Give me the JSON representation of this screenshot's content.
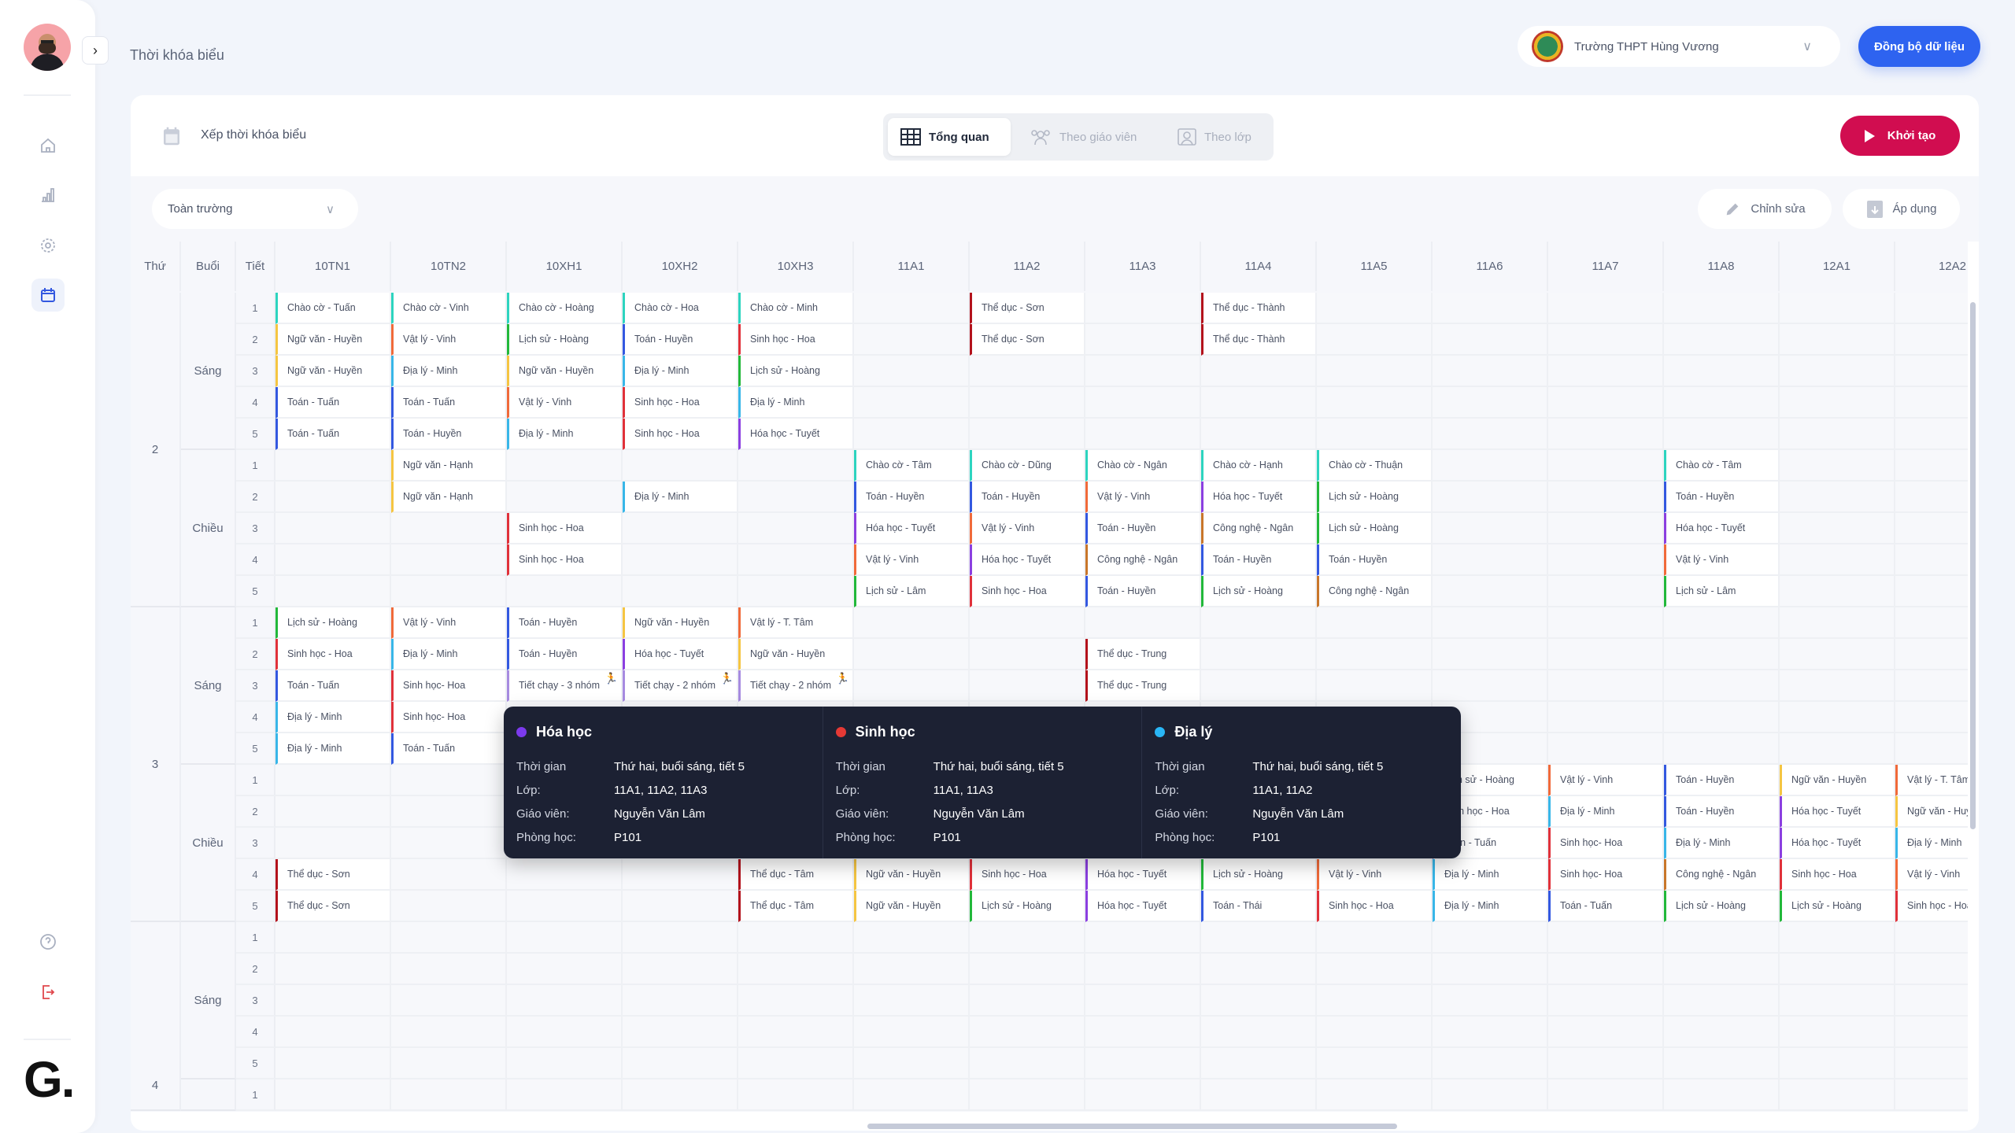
{
  "header": {
    "title": "Thời khóa biểu",
    "school": "Trường THPT Hùng Vương",
    "sync_label": "Đồng bộ dữ liệu"
  },
  "toolbar": {
    "title": "Xếp thời khóa biểu",
    "tabs": [
      {
        "label": "Tổng quan",
        "active": true
      },
      {
        "label": "Theo giáo viên",
        "active": false
      },
      {
        "label": "Theo lớp",
        "active": false
      }
    ],
    "start_label": "Khởi tạo",
    "scope": "Toàn trường",
    "edit_label": "Chỉnh sửa",
    "apply_label": "Áp dụng"
  },
  "sidebar": {
    "items": [
      "home-icon",
      "chart-icon",
      "settings-icon",
      "calendar-icon"
    ],
    "bottom": [
      "help-icon",
      "logout-icon"
    ],
    "logo": "G."
  },
  "table": {
    "headers": {
      "day": "Thứ",
      "session": "Buổi",
      "period": "Tiết"
    },
    "classes": [
      "10TN1",
      "10TN2",
      "10XH1",
      "10XH2",
      "10XH3",
      "11A1",
      "11A2",
      "11A3",
      "11A4",
      "11A5",
      "11A6",
      "11A7",
      "11A8",
      "12A1",
      "12A2"
    ],
    "days": [
      {
        "day": "2",
        "sessions": [
          {
            "label": "Sáng",
            "periods": [
              {
                "num": "1",
                "cells": [
                  "Chào cờ - Tuấn",
                  "Chào cờ - Vinh",
                  "Chào cờ - Hoàng",
                  "Chào cờ - Hoa",
                  "Chào cờ - Minh",
                  "",
                  "Thể dục - Sơn",
                  "",
                  "Thể dục - Thành",
                  "",
                  "",
                  "",
                  "",
                  "",
                  ""
                ]
              },
              {
                "num": "2",
                "cells": [
                  "Ngữ văn - Huyền",
                  "Vật lý - Vinh",
                  "Lịch sử - Hoàng",
                  "Toán - Huyền",
                  "Sinh học - Hoa",
                  "",
                  "Thể dục - Sơn",
                  "",
                  "Thể dục - Thành",
                  "",
                  "",
                  "",
                  "",
                  "",
                  ""
                ]
              },
              {
                "num": "3",
                "cells": [
                  "Ngữ văn - Huyền",
                  "Địa lý - Minh",
                  "Ngữ văn - Huyền",
                  "Địa lý - Minh",
                  "Lịch sử - Hoàng",
                  "",
                  "",
                  "",
                  "",
                  "",
                  "",
                  "",
                  "",
                  "",
                  ""
                ]
              },
              {
                "num": "4",
                "cells": [
                  "Toán - Tuấn",
                  "Toán - Tuấn",
                  "Vật lý - Vinh",
                  "Sinh học - Hoa",
                  "Địa lý - Minh",
                  "",
                  "",
                  "",
                  "",
                  "",
                  "",
                  "",
                  "",
                  "",
                  ""
                ]
              },
              {
                "num": "5",
                "cells": [
                  "Toán - Tuấn",
                  "Toán - Huyền",
                  "Địa lý - Minh",
                  "Sinh học - Hoa",
                  "Hóa học - Tuyết",
                  "",
                  "",
                  "",
                  "",
                  "",
                  "",
                  "",
                  "",
                  "",
                  ""
                ]
              }
            ]
          },
          {
            "label": "Chiều",
            "periods": [
              {
                "num": "1",
                "cells": [
                  "",
                  "Ngữ văn - Hạnh",
                  "",
                  "",
                  "",
                  "Chào cờ - Tâm",
                  "Chào cờ - Dũng",
                  "Chào cờ - Ngân",
                  "Chào cờ - Hạnh",
                  "Chào cờ - Thuận",
                  "",
                  "",
                  "Chào cờ - Tâm",
                  "",
                  ""
                ]
              },
              {
                "num": "2",
                "cells": [
                  "",
                  "Ngữ văn - Hạnh",
                  "",
                  "Địa lý - Minh",
                  "",
                  "Toán - Huyền",
                  "Toán - Huyền",
                  "Vật lý - Vinh",
                  "Hóa học - Tuyết",
                  "Lịch sử - Hoàng",
                  "",
                  "",
                  "Toán - Huyền",
                  "",
                  ""
                ]
              },
              {
                "num": "3",
                "cells": [
                  "",
                  "",
                  "Sinh học - Hoa",
                  "",
                  "",
                  "Hóa học - Tuyết",
                  "Vật lý - Vinh",
                  "Toán - Huyền",
                  "Công nghệ - Ngân",
                  "Lịch sử - Hoàng",
                  "",
                  "",
                  "Hóa học - Tuyết",
                  "",
                  ""
                ]
              },
              {
                "num": "4",
                "cells": [
                  "",
                  "",
                  "Sinh học - Hoa",
                  "",
                  "",
                  "Vật lý - Vinh",
                  "Hóa học - Tuyết",
                  "Công nghệ - Ngân",
                  "Toán - Huyền",
                  "Toán - Huyền",
                  "",
                  "",
                  "Vật lý - Vinh",
                  "",
                  ""
                ]
              },
              {
                "num": "5",
                "cells": [
                  "",
                  "",
                  "",
                  "",
                  "",
                  "Lịch sử - Lâm",
                  "Sinh học - Hoa",
                  "Toán - Huyền",
                  "Lịch sử - Hoàng",
                  "Công nghệ - Ngân",
                  "",
                  "",
                  "Lịch sử - Lâm",
                  "",
                  ""
                ]
              }
            ]
          }
        ]
      },
      {
        "day": "3",
        "sessions": [
          {
            "label": "Sáng",
            "periods": [
              {
                "num": "1",
                "cells": [
                  "Lịch sử - Hoàng",
                  "Vật lý - Vinh",
                  "Toán - Huyền",
                  "Ngữ văn - Huyền",
                  "Vật lý - T. Tâm",
                  "",
                  "",
                  "",
                  "",
                  "",
                  "",
                  "",
                  "",
                  "",
                  ""
                ]
              },
              {
                "num": "2",
                "cells": [
                  "Sinh học - Hoa",
                  "Địa lý - Minh",
                  "Toán - Huyền",
                  "Hóa học - Tuyết",
                  "Ngữ văn - Huyền",
                  "",
                  "",
                  "Thể dục - Trung",
                  "",
                  "",
                  "",
                  "",
                  "",
                  "",
                  ""
                ]
              },
              {
                "num": "3",
                "cells": [
                  "Toán - Tuấn",
                  "Sinh học- Hoa",
                  "Tiết chạy - 3 nhóm",
                  "Tiết chạy - 2 nhóm",
                  "Tiết chạy - 2 nhóm",
                  "",
                  "",
                  "Thể dục - Trung",
                  "",
                  "",
                  "",
                  "",
                  "",
                  "",
                  ""
                ]
              },
              {
                "num": "4",
                "cells": [
                  "Địa lý - Minh",
                  "Sinh học- Hoa",
                  "",
                  "",
                  "",
                  "",
                  "",
                  "",
                  "",
                  "",
                  "",
                  "",
                  "",
                  "",
                  ""
                ]
              },
              {
                "num": "5",
                "cells": [
                  "Địa lý - Minh",
                  "Toán - Tuấn",
                  "",
                  "",
                  "",
                  "",
                  "",
                  "",
                  "",
                  "",
                  "",
                  "",
                  "",
                  "",
                  ""
                ]
              }
            ]
          },
          {
            "label": "Chiều",
            "periods": [
              {
                "num": "1",
                "cells": [
                  "",
                  "",
                  "",
                  "",
                  "",
                  "",
                  "",
                  "",
                  "",
                  "",
                  "Lịch sử - Hoàng",
                  "Vật lý - Vinh",
                  "Toán - Huyền",
                  "Ngữ văn - Huyền",
                  "Vật lý - T. Tâm"
                ]
              },
              {
                "num": "2",
                "cells": [
                  "",
                  "",
                  "",
                  "",
                  "",
                  "",
                  "",
                  "",
                  "",
                  "",
                  "Sinh học - Hoa",
                  "Địa lý - Minh",
                  "Toán - Huyền",
                  "Hóa học - Tuyết",
                  "Ngữ văn - Huyền"
                ]
              },
              {
                "num": "3",
                "cells": [
                  "",
                  "",
                  "",
                  "",
                  "",
                  "",
                  "",
                  "",
                  "",
                  "",
                  "Toán - Tuấn",
                  "Sinh học- Hoa",
                  "Địa lý - Minh",
                  "Hóa học - Tuyết",
                  "Địa lý - Minh"
                ]
              },
              {
                "num": "4",
                "cells": [
                  "Thể dục - Sơn",
                  "",
                  "",
                  "",
                  "Thể dục - Tâm",
                  "Ngữ văn - Huyền",
                  "Sinh học - Hoa",
                  "Hóa học - Tuyết",
                  "Lịch sử - Hoàng",
                  "Vật lý - Vinh",
                  "Địa lý - Minh",
                  "Sinh học- Hoa",
                  "Công nghệ - Ngân",
                  "Sinh học - Hoa",
                  "Vật lý - Vinh"
                ]
              },
              {
                "num": "5",
                "cells": [
                  "Thể dục - Sơn",
                  "",
                  "",
                  "",
                  "Thể dục - Tâm",
                  "Ngữ văn - Huyền",
                  "Lịch sử - Hoàng",
                  "Hóa học - Tuyết",
                  "Toán - Thái",
                  "Sinh học - Hoa",
                  "Địa lý - Minh",
                  "Toán - Tuấn",
                  "Lịch sử - Hoàng",
                  "Lịch sử - Hoàng",
                  "Sinh học - Hoa"
                ]
              }
            ]
          }
        ]
      },
      {
        "day": "4",
        "sessions": [
          {
            "label": "Sáng",
            "periods": [
              {
                "num": "1",
                "cells": []
              },
              {
                "num": "2",
                "cells": []
              },
              {
                "num": "3",
                "cells": []
              },
              {
                "num": "4",
                "cells": []
              },
              {
                "num": "5",
                "cells": []
              }
            ]
          },
          {
            "label": "",
            "periods": [
              {
                "num": "1",
                "cells": []
              }
            ]
          }
        ]
      }
    ]
  },
  "subject_colors": {
    "Chào cờ": "#2dd4bf",
    "Ngữ văn": "#f5c542",
    "Vật lý": "#f06a3a",
    "Lịch sử": "#22b83a",
    "Toán": "#3358e0",
    "Sinh học": "#e0313a",
    "Địa lý": "#38b6e8",
    "Hóa học": "#8b3fe0",
    "Thể dục": "#b3121c",
    "Công nghệ": "#c8762a",
    "Tiết chạy": "#a78be0"
  },
  "tooltip": {
    "labels": {
      "time": "Thời gian",
      "class": "Lớp:",
      "teacher": "Giáo viên:",
      "room": "Phòng học:"
    },
    "items": [
      {
        "subject": "Hóa học",
        "color": "#7c3aed",
        "time": "Thứ hai, buổi sáng, tiết 5",
        "classes": "11A1, 11A2, 11A3",
        "teacher": "Nguyễn Văn Lâm",
        "room": "P101"
      },
      {
        "subject": "Sinh học",
        "color": "#e53935",
        "time": "Thứ hai, buổi sáng, tiết 5",
        "classes": "11A1, 11A3",
        "teacher": "Nguyễn Văn Lâm",
        "room": "P101"
      },
      {
        "subject": "Địa lý",
        "color": "#29b6f6",
        "time": "Thứ hai, buổi sáng, tiết 5",
        "classes": "11A1, 11A2",
        "teacher": "Nguyễn Văn Lâm",
        "room": "P101"
      }
    ]
  }
}
